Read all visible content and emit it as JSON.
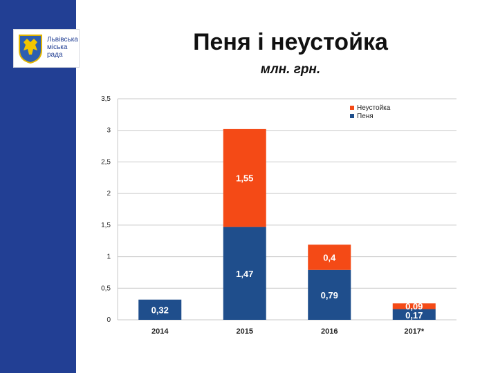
{
  "org": {
    "logo_lines": [
      "Львівська",
      "міська",
      "рада"
    ]
  },
  "slide": {
    "title": "Пеня і неустойка",
    "subtitle": "млн. грн."
  },
  "colors": {
    "band": "#223f94",
    "penalty": "#1f4e8c",
    "forfeit": "#f44a16"
  },
  "chart_data": {
    "type": "bar",
    "stacked": true,
    "categories": [
      "2014",
      "2015",
      "2016",
      "2017*"
    ],
    "series": [
      {
        "name": "Пеня",
        "values": [
          0.32,
          1.47,
          0.79,
          0.17
        ],
        "labels": [
          "0,32",
          "1,47",
          "0,79",
          "0,17"
        ],
        "color": "#1f4e8c"
      },
      {
        "name": "Неустойка",
        "values": [
          0,
          1.55,
          0.4,
          0.09
        ],
        "labels": [
          "",
          "1,55",
          "0,4",
          "0,09"
        ],
        "color": "#f44a16"
      }
    ],
    "ylim": [
      0,
      3.5
    ],
    "yticks": [
      0,
      0.5,
      1,
      1.5,
      2,
      2.5,
      3,
      3.5
    ],
    "ytick_labels": [
      "0",
      "0,5",
      "1",
      "1,5",
      "2",
      "2,5",
      "3",
      "3,5"
    ],
    "grid": true,
    "legend": {
      "position": "top-right",
      "order": [
        "Неустойка",
        "Пеня"
      ]
    }
  }
}
